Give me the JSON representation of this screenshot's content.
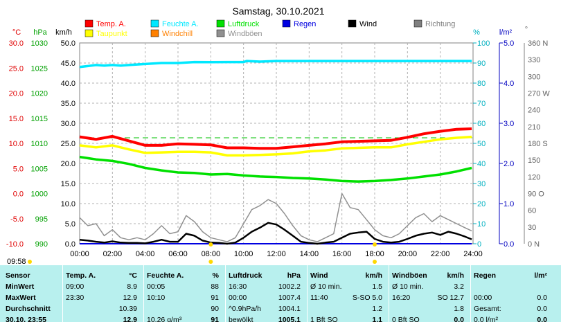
{
  "chart_data": {
    "type": "line",
    "title": "Samstag, 30.10.2021",
    "clock": "09:58",
    "x_tick_labels": [
      "00:00",
      "02:00",
      "04:00",
      "06:00",
      "08:00",
      "10:00",
      "12:00",
      "14:00",
      "16:00",
      "18:00",
      "20:00",
      "22:00",
      "24:00"
    ],
    "axes": {
      "temp": {
        "unit": "°C",
        "color": "#e00000",
        "ticks": [
          "30.0",
          "25.0",
          "20.0",
          "15.0",
          "10.0",
          "5.0",
          "0.0",
          "-5.0",
          "-10.0"
        ],
        "range": [
          -10,
          30
        ]
      },
      "pressure": {
        "unit": "hPa",
        "color": "#00a000",
        "ticks": [
          "1030",
          "1025",
          "1020",
          "1015",
          "1010",
          "1005",
          "1000",
          "995",
          "990"
        ],
        "range": [
          990,
          1030
        ]
      },
      "wind": {
        "unit": "km/h",
        "color": "#000000",
        "ticks": [
          "50.0",
          "45.0",
          "40.0",
          "35.0",
          "30.0",
          "25.0",
          "20.0",
          "15.0",
          "10.0",
          "5.0",
          "0.0"
        ],
        "range": [
          0,
          50
        ]
      },
      "humidity": {
        "unit": "%",
        "color": "#00b0c0",
        "ticks": [
          "100",
          "90",
          "80",
          "70",
          "60",
          "50",
          "40",
          "30",
          "20",
          "10",
          "0"
        ],
        "range": [
          0,
          100
        ]
      },
      "rain": {
        "unit": "l/m²",
        "color": "#0000c0",
        "ticks": [
          "5.0",
          "4.0",
          "3.0",
          "2.0",
          "1.0",
          "0.0"
        ],
        "range": [
          0,
          5
        ]
      },
      "direction": {
        "unit": "°",
        "color": "#606060",
        "ticks": [
          "360 N",
          "330",
          "300",
          "270 W",
          "240",
          "210",
          "180 S",
          "150",
          "120",
          "90 O",
          "60",
          "30",
          "0 N"
        ],
        "range": [
          0,
          360
        ]
      }
    },
    "legend": [
      {
        "name": "Temp. A.",
        "color": "#ff0000"
      },
      {
        "name": "Feuchte A.",
        "color": "#00e8ff"
      },
      {
        "name": "Luftdruck",
        "color": "#00e000"
      },
      {
        "name": "Regen",
        "color": "#0000e0"
      },
      {
        "name": "Wind",
        "color": "#000000"
      },
      {
        "name": "Richtung",
        "color": "#808080"
      },
      {
        "name": "Taupunkt",
        "color": "#ffff00"
      },
      {
        "name": "Windchill",
        "color": "#ff8000"
      },
      {
        "name": "Windböen",
        "color": "#909090"
      }
    ],
    "series": [
      {
        "name": "Temp. A.",
        "axis": "temp",
        "x": [
          0,
          1,
          2,
          3,
          4,
          5,
          6,
          7,
          8,
          9,
          10,
          11,
          12,
          13,
          14,
          15,
          16,
          17,
          18,
          19,
          20,
          21,
          22,
          23,
          23.92
        ],
        "values": [
          11.3,
          10.8,
          11.4,
          10.5,
          9.6,
          9.6,
          9.9,
          9.8,
          9.7,
          9.1,
          9.1,
          9.0,
          9.0,
          9.3,
          9.6,
          9.9,
          10.3,
          10.4,
          10.5,
          10.6,
          11.2,
          11.9,
          12.4,
          12.8,
          12.9
        ]
      },
      {
        "name": "Taupunkt",
        "axis": "temp",
        "x": [
          0,
          1,
          2,
          3,
          4,
          5,
          6,
          7,
          8,
          9,
          10,
          11,
          12,
          13,
          14,
          15,
          16,
          17,
          18,
          19,
          20,
          21,
          22,
          23,
          23.92
        ],
        "values": [
          9.6,
          9.2,
          9.6,
          8.8,
          8.1,
          8.2,
          8.3,
          8.3,
          8.2,
          7.6,
          7.6,
          7.7,
          7.8,
          8.0,
          8.4,
          8.6,
          9.0,
          9.1,
          9.2,
          9.2,
          9.8,
          10.3,
          10.8,
          11.1,
          11.3
        ]
      },
      {
        "name": "Luftdruck",
        "axis": "pressure",
        "x": [
          0,
          1,
          2,
          3,
          4,
          5,
          6,
          7,
          8,
          9,
          10,
          11,
          12,
          13,
          14,
          15,
          16,
          17,
          18,
          19,
          20,
          21,
          22,
          23,
          23.92
        ],
        "values": [
          1007.3,
          1006.8,
          1006.5,
          1005.9,
          1005.1,
          1004.6,
          1004.2,
          1004.1,
          1003.8,
          1003.9,
          1003.6,
          1003.4,
          1003.3,
          1003.1,
          1003.0,
          1002.8,
          1002.5,
          1002.4,
          1002.5,
          1002.7,
          1003.0,
          1003.4,
          1003.8,
          1004.4,
          1005.1
        ]
      },
      {
        "name": "Feuchte A.",
        "axis": "humidity",
        "x": [
          0,
          0.5,
          1,
          1.5,
          2,
          2.5,
          3,
          4,
          5,
          6,
          7,
          8,
          9,
          10,
          10.2,
          11,
          12,
          13,
          14,
          15,
          16,
          17,
          18,
          19,
          20,
          21,
          22,
          23,
          23.92
        ],
        "values": [
          88,
          88.5,
          89,
          88.7,
          89,
          88.7,
          89,
          89.5,
          90,
          90,
          90.5,
          90.4,
          90.5,
          90.5,
          91,
          90.7,
          91,
          91,
          91,
          91,
          91,
          91,
          91,
          91,
          91,
          91,
          91,
          91,
          91
        ]
      },
      {
        "name": "Wind",
        "axis": "wind",
        "x": [
          0,
          0.5,
          1,
          1.5,
          2,
          2.5,
          3,
          3.5,
          4,
          4.5,
          5,
          5.5,
          6,
          6.5,
          7,
          7.5,
          8,
          8.5,
          9,
          9.5,
          10,
          10.5,
          11,
          11.5,
          12,
          12.5,
          13,
          13.5,
          14,
          14.5,
          15,
          15.5,
          16,
          16.5,
          17,
          17.5,
          18,
          18.5,
          19,
          19.5,
          20,
          20.5,
          21,
          21.5,
          22,
          22.5,
          23,
          23.5,
          23.92
        ],
        "values": [
          1.0,
          0.8,
          0.5,
          0.3,
          0.6,
          0.3,
          0.2,
          0.2,
          0.1,
          0.5,
          1.0,
          0.5,
          0.5,
          2.5,
          2.0,
          0.8,
          0.3,
          0.2,
          0.0,
          0.3,
          1.5,
          3.0,
          4.0,
          5.2,
          4.8,
          3.5,
          2.0,
          0.5,
          0.2,
          0.0,
          0.3,
          0.5,
          1.5,
          2.5,
          2.8,
          3.0,
          1.2,
          0.5,
          0.3,
          0.5,
          1.2,
          2.0,
          2.5,
          2.8,
          2.2,
          3.0,
          2.5,
          1.8,
          1.1
        ]
      },
      {
        "name": "Windböen",
        "axis": "wind",
        "x": [
          0,
          0.5,
          1,
          1.5,
          2,
          2.5,
          3,
          3.5,
          4,
          4.5,
          5,
          5.5,
          6,
          6.5,
          7,
          7.5,
          8,
          8.5,
          9,
          9.5,
          10,
          10.5,
          11,
          11.5,
          12,
          12.5,
          13,
          13.5,
          14,
          14.5,
          15,
          15.5,
          16,
          16.5,
          17,
          17.5,
          18,
          18.5,
          19,
          19.5,
          20,
          20.5,
          21,
          21.5,
          22,
          22.5,
          23,
          23.5,
          23.92
        ],
        "values": [
          6.5,
          4.5,
          5.0,
          2.0,
          3.5,
          1.5,
          1.0,
          1.5,
          1.0,
          2.5,
          4.5,
          2.5,
          3.0,
          7.0,
          5.5,
          3.0,
          1.5,
          1.0,
          0.5,
          1.5,
          5.0,
          8.5,
          9.5,
          11.0,
          10.0,
          7.5,
          4.5,
          2.0,
          1.0,
          0.5,
          1.5,
          2.5,
          12.5,
          9.0,
          8.5,
          6.0,
          3.5,
          2.0,
          1.5,
          2.5,
          4.5,
          6.5,
          7.5,
          5.5,
          7.0,
          6.0,
          5.0,
          4.0,
          3.2
        ]
      },
      {
        "name": "Regen",
        "axis": "rain",
        "x": [
          0,
          23.92
        ],
        "values": [
          0.0,
          0.0
        ]
      }
    ],
    "reference_line": {
      "axis": "temp",
      "value": 11.1,
      "color": "#00c000"
    },
    "markers": {
      "x": [
        8.0,
        18.0
      ],
      "color": "#ffd800"
    }
  },
  "table": {
    "columns": [
      {
        "head": "Sensor",
        "unit": ""
      },
      {
        "head": "Temp. A.",
        "unit": "°C"
      },
      {
        "head": "Feuchte A.",
        "unit": "%"
      },
      {
        "head": "Luftdruck",
        "unit": "hPa"
      },
      {
        "head": "Wind",
        "unit": "km/h"
      },
      {
        "head": "Windböen",
        "unit": "km/h"
      },
      {
        "head": "Regen",
        "unit": "l/m²"
      }
    ],
    "rows": [
      {
        "label": "MinWert",
        "cells": [
          [
            "09:00",
            "8.9"
          ],
          [
            "00:05",
            "88"
          ],
          [
            "16:30",
            "1002.2"
          ],
          [
            "Ø 10 min.",
            "1.5"
          ],
          [
            "Ø 10 min.",
            "3.2"
          ],
          [
            "",
            ""
          ]
        ]
      },
      {
        "label": "MaxWert",
        "cells": [
          [
            "23:30",
            "12.9"
          ],
          [
            "10:10",
            "91"
          ],
          [
            "00:00",
            "1007.4"
          ],
          [
            "11:40",
            "S-SO 5.0"
          ],
          [
            "16:20",
            "SO 12.7"
          ],
          [
            "00:00",
            "0.0"
          ]
        ]
      },
      {
        "label": "Durchschnitt",
        "cells": [
          [
            "",
            "10.39"
          ],
          [
            "",
            "90"
          ],
          [
            "^0.9hPa/h",
            "1004.1"
          ],
          [
            "",
            "1.2"
          ],
          [
            "",
            "1.8"
          ],
          [
            "Gesamt:",
            "0.0"
          ]
        ]
      },
      {
        "label": "30.10. 23:55",
        "cells": [
          [
            "",
            "12.9"
          ],
          [
            "10.26 g/m³",
            "91"
          ],
          [
            "bewölkt",
            "1005.1"
          ],
          [
            "1 Bft SO",
            "1.1"
          ],
          [
            "0 Bft SO",
            "0.0"
          ],
          [
            "0.0 l/m²",
            "0.0"
          ]
        ]
      }
    ]
  }
}
